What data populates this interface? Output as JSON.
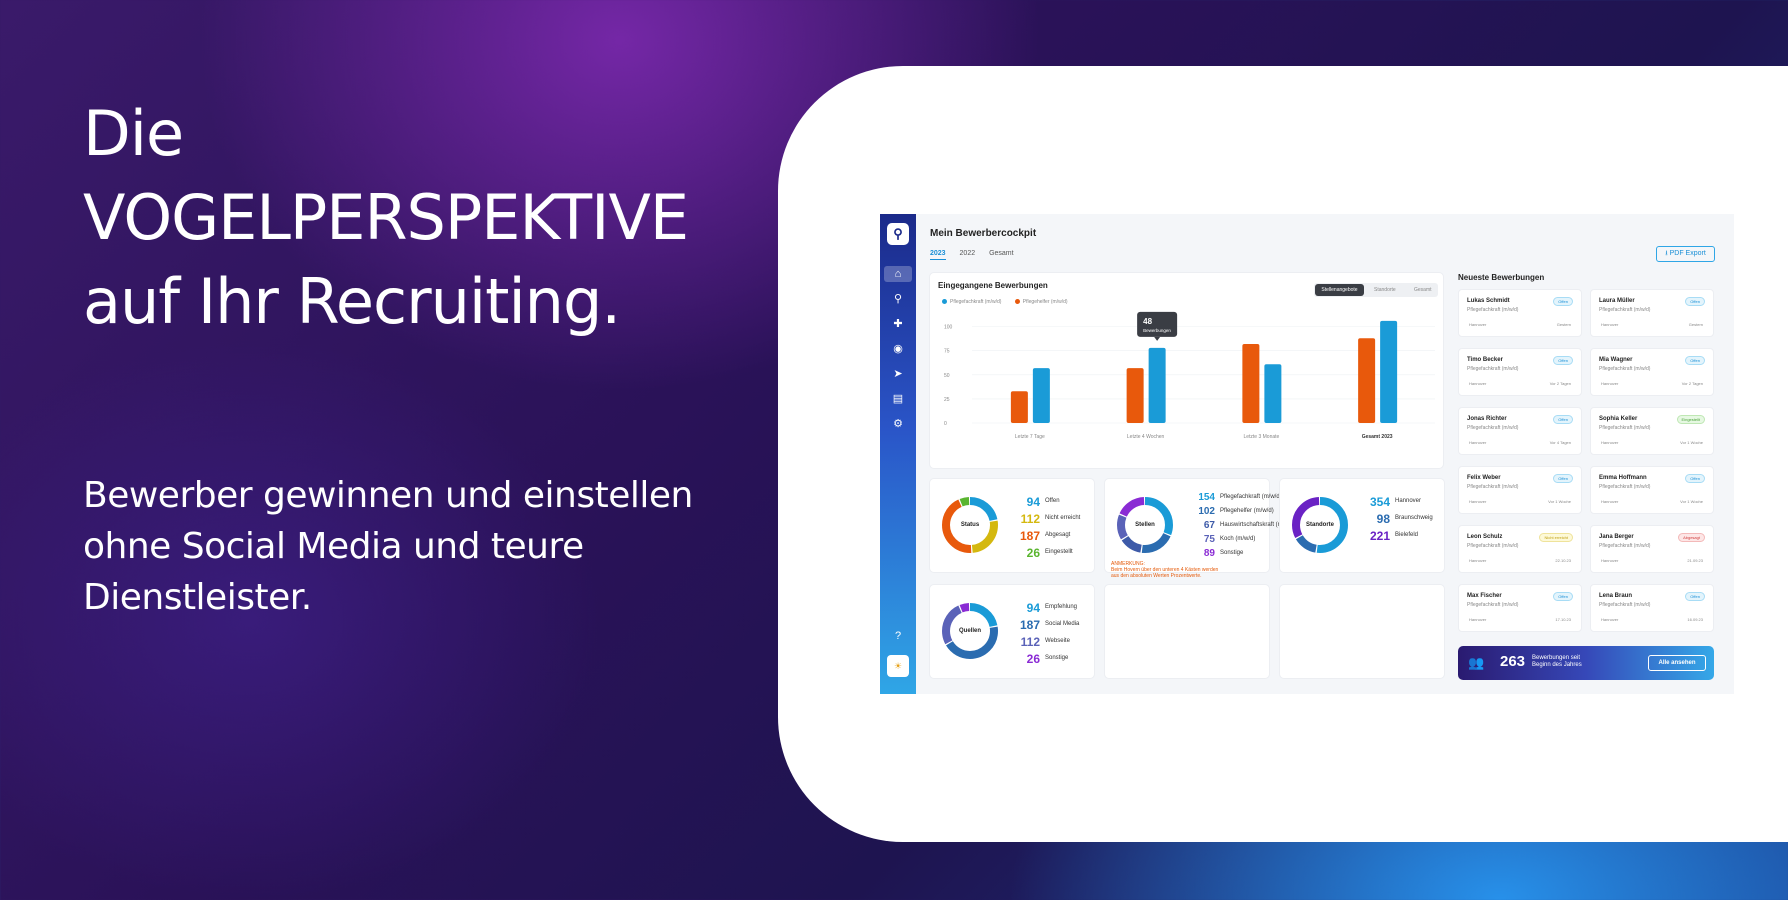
{
  "hero": {
    "line1": "Die",
    "line2": "VOGELPERSPEKTIVE",
    "line3": "auf Ihr Recruiting.",
    "sub1": "Bewerber gewinnen und einstellen",
    "sub2": "ohne Social Media und teure",
    "sub3": "Dienstleister."
  },
  "app": {
    "title": "Mein Bewerbercockpit",
    "years": [
      "2023",
      "2022",
      "Gesamt"
    ],
    "pdf": "PDF Export",
    "colors": {
      "orange": "#e8590c",
      "blue": "#1a9bd7"
    }
  },
  "chart": {
    "title": "Eingegangene Bewerbungen",
    "legend": [
      "Pflegefachkraft (m/w/d)",
      "Pflegehelfer (m/w/d)"
    ],
    "tabs": [
      "Stellenangebote",
      "Standorte",
      "Gesamt"
    ],
    "tooltip_value": "48",
    "tooltip_label": "Bewerbungen"
  },
  "chart_data": {
    "type": "bar",
    "categories": [
      "Letzte 7 Tage",
      "Letzte 4 Wochen",
      "Letzte 3 Monate",
      "Gesamt 2023"
    ],
    "series": [
      {
        "name": "Pflegehelfer (m/w/d)",
        "color": "#e8590c",
        "values": [
          33,
          57,
          82,
          88
        ]
      },
      {
        "name": "Pflegefachkraft (m/w/d)",
        "color": "#1a9bd7",
        "values": [
          57,
          78,
          61,
          106
        ]
      }
    ],
    "yticks": [
      "100",
      "75",
      "50",
      "25",
      "0"
    ],
    "ylim": [
      0,
      110
    ]
  },
  "status": {
    "label": "Status",
    "items": [
      {
        "v": "94",
        "t": "Offen",
        "c": "#1a9bd7"
      },
      {
        "v": "112",
        "t": "Nicht erreicht",
        "c": "#d4b80f"
      },
      {
        "v": "187",
        "t": "Abgesagt",
        "c": "#e8590c"
      },
      {
        "v": "26",
        "t": "Eingestellt",
        "c": "#5ab52f"
      }
    ]
  },
  "stellen": {
    "label": "Stellen",
    "items": [
      {
        "v": "154",
        "t": "Pflegefachkraft (m/w/d)",
        "c": "#1a9bd7"
      },
      {
        "v": "102",
        "t": "Pflegehelfer (m/w/d)",
        "c": "#2b6cb0"
      },
      {
        "v": "67",
        "t": "Hauswirtschaftskraft (m/w/d)",
        "c": "#3d5aa8"
      },
      {
        "v": "75",
        "t": "Koch (m/w/d)",
        "c": "#5a62b8"
      },
      {
        "v": "89",
        "t": "Sonstige",
        "c": "#8a2bd4"
      }
    ],
    "note1": "ANMERKUNG:",
    "note2": "Beim Hovern über den unteren 4 Kästen werden",
    "note3": "aus den absoluten Werten Prozentwerte."
  },
  "standorte": {
    "label": "Standorte",
    "items": [
      {
        "v": "354",
        "t": "Hannover",
        "c": "#1a9bd7"
      },
      {
        "v": "98",
        "t": "Braunschweig",
        "c": "#2b6cb0"
      },
      {
        "v": "221",
        "t": "Bielefeld",
        "c": "#6a22c4"
      }
    ]
  },
  "quellen": {
    "label": "Quellen",
    "items": [
      {
        "v": "94",
        "t": "Empfehlung",
        "c": "#1a9bd7"
      },
      {
        "v": "187",
        "t": "Social Media",
        "c": "#2b6cb0"
      },
      {
        "v": "112",
        "t": "Webseite",
        "c": "#5a62b8"
      },
      {
        "v": "26",
        "t": "Sonstige",
        "c": "#8a2bd4"
      }
    ]
  },
  "newest": {
    "title": "Neueste Bewerbungen",
    "cards": [
      {
        "name": "Lukas Schmidt",
        "job": "Pflegefachkraft (m/w/d)",
        "loc": "Hannover",
        "date": "Gestern",
        "badge": "Offen",
        "type": "o"
      },
      {
        "name": "Laura Müller",
        "job": "Pflegefachkraft (m/w/d)",
        "loc": "Hannover",
        "date": "Gestern",
        "badge": "Offen",
        "type": "o"
      },
      {
        "name": "Timo Becker",
        "job": "Pflegefachkraft (m/w/d)",
        "loc": "Hannover",
        "date": "Vor 2 Tagen",
        "badge": "Offen",
        "type": "o"
      },
      {
        "name": "Mia Wagner",
        "job": "Pflegefachkraft (m/w/d)",
        "loc": "Hannover",
        "date": "Vor 2 Tagen",
        "badge": "Offen",
        "type": "o"
      },
      {
        "name": "Jonas Richter",
        "job": "Pflegefachkraft (m/w/d)",
        "loc": "Hannover",
        "date": "Vor 4 Tagen",
        "badge": "Offen",
        "type": "o"
      },
      {
        "name": "Sophia Keller",
        "job": "Pflegefachkraft (m/w/d)",
        "loc": "Hannover",
        "date": "Vor 1 Woche",
        "badge": "Eingestellt",
        "type": "g"
      },
      {
        "name": "Felix Weber",
        "job": "Pflegefachkraft (m/w/d)",
        "loc": "Hannover",
        "date": "Vor 1 Woche",
        "badge": "Offen",
        "type": "o"
      },
      {
        "name": "Emma Hoffmann",
        "job": "Pflegefachkraft (m/w/d)",
        "loc": "Hannover",
        "date": "Vor 1 Woche",
        "badge": "Offen",
        "type": "o"
      },
      {
        "name": "Leon Schulz",
        "job": "Pflegefachkraft (m/w/d)",
        "loc": "Hannover",
        "date": "22.10.23",
        "badge": "Nicht erreicht",
        "type": "e"
      },
      {
        "name": "Jana Berger",
        "job": "Pflegefachkraft (m/w/d)",
        "loc": "Hannover",
        "date": "21.09.23",
        "badge": "Abgesagt",
        "type": "a"
      },
      {
        "name": "Max Fischer",
        "job": "Pflegefachkraft (m/w/d)",
        "loc": "Hannover",
        "date": "17.10.23",
        "badge": "Offen",
        "type": "o"
      },
      {
        "name": "Lena Braun",
        "job": "Pflegefachkraft (m/w/d)",
        "loc": "Hannover",
        "date": "16.09.23",
        "badge": "Offen",
        "type": "o"
      }
    ]
  },
  "footer": {
    "count": "263",
    "text1": "Bewerbungen seit",
    "text2": "Beginn des Jahres",
    "button": "Alle ansehen"
  },
  "sidebar": {
    "icons": [
      "home-icon",
      "search-icon",
      "add-user-icon",
      "location-icon",
      "send-icon",
      "list-icon",
      "gear-icon"
    ],
    "help": "?"
  }
}
